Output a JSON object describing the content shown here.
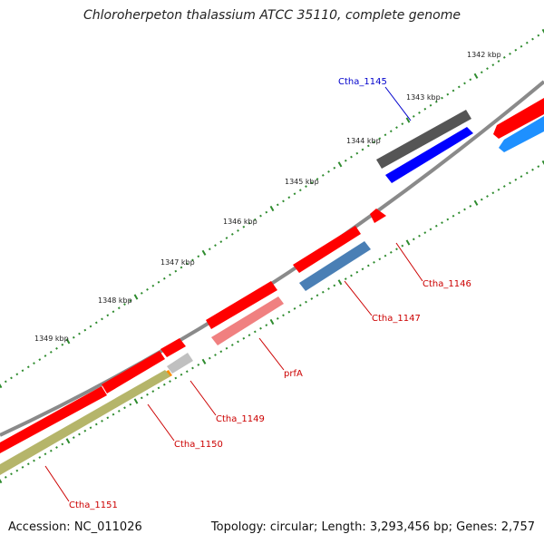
{
  "title": "Chloroherpeton thalassium ATCC 35110, complete genome",
  "footer": {
    "accession": "Accession: NC_011026",
    "summary": "Topology: circular; Length: 3,293,456 bp; Genes: 2,757"
  },
  "ticks": [
    "1342 kbp",
    "1343 kbp",
    "1344 kbp",
    "1345 kbp",
    "1346 kbp",
    "1347 kbp",
    "1348 kbp",
    "1349 kbp"
  ],
  "genes": [
    {
      "label": "Ctha_1145",
      "label_color": "#0000cc",
      "cds_color": "#0000ff",
      "gene_color": "#555555"
    },
    {
      "label": "Ctha_1146",
      "label_color": "#cc0000",
      "gene_color": "#ff0000"
    },
    {
      "label": "Ctha_1147",
      "label_color": "#cc0000",
      "cds_color": "#4a7fb5",
      "gene_color": "#ff0000"
    },
    {
      "label": "prfA",
      "label_color": "#cc0000",
      "cds_color": "#f08080",
      "gene_color": "#ff0000"
    },
    {
      "label": "Ctha_1149",
      "label_color": "#cc0000",
      "cds_color": "#c0c0c0",
      "gene_color": "#ff0000"
    },
    {
      "label": "Ctha_1150",
      "label_color": "#cc0000",
      "cds_color": "#ff8c00",
      "gene_color": "#ff0000"
    },
    {
      "label": "Ctha_1151",
      "label_color": "#cc0000",
      "cds_color": "#b5b56a",
      "gene_color": "#ff0000"
    }
  ],
  "colors": {
    "backbone": "#8a8a8a",
    "tick_dots": "#2e8b2e",
    "extra_cds": "#1e90ff"
  }
}
